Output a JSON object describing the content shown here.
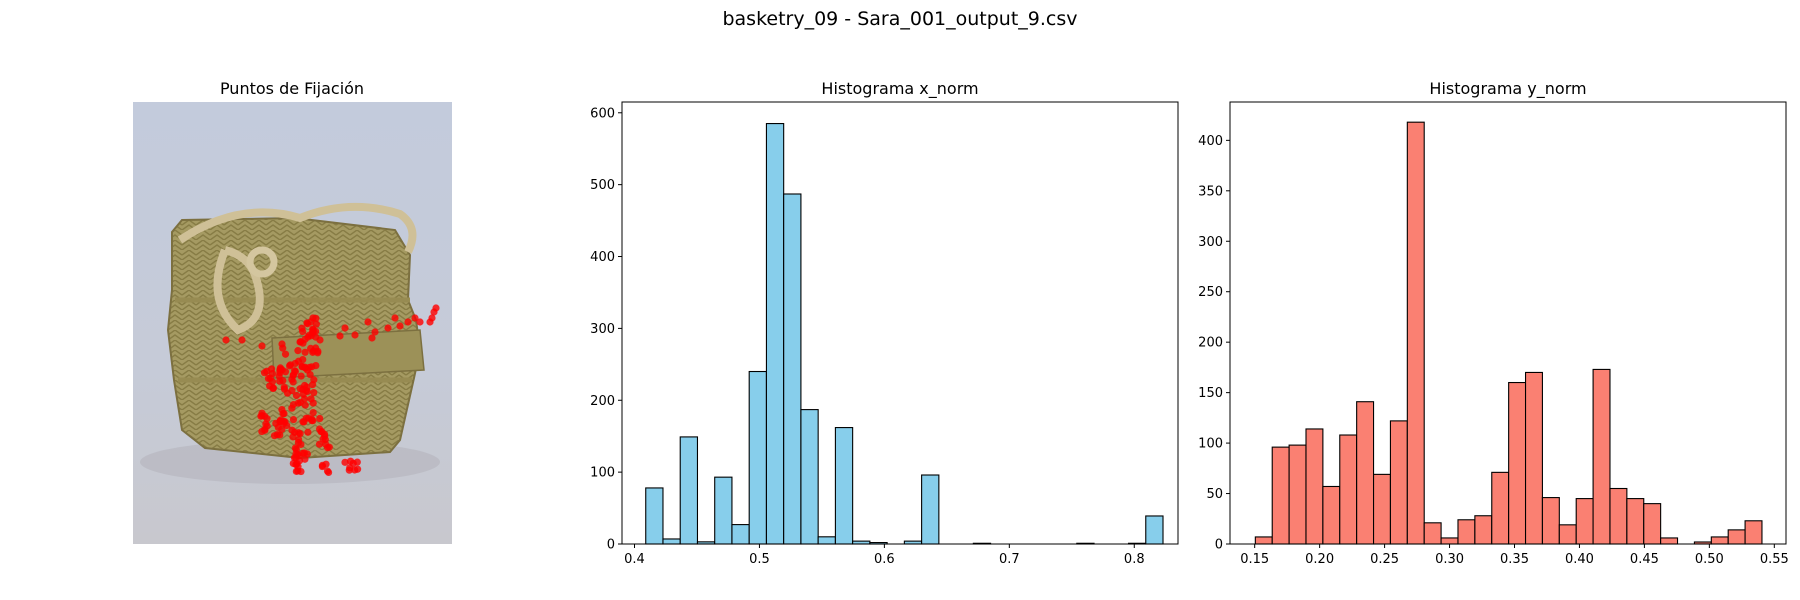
{
  "figure": {
    "title": "basketry_09 - Sara_001_output_9.csv"
  },
  "image_panel": {
    "title": "Puntos de Fijación"
  },
  "colors": {
    "x_hist": "#87ceeb",
    "y_hist": "#fa8072",
    "edge": "#000000",
    "fixation": "#ff0000"
  },
  "chart_data": [
    {
      "type": "bar",
      "title": "Histograma x_norm",
      "xlabel": "",
      "ylabel": "",
      "xlim": [
        0.39,
        0.835
      ],
      "ylim": [
        0,
        615
      ],
      "xticks": [
        0.4,
        0.5,
        0.6,
        0.7,
        0.8
      ],
      "xtick_labels": [
        "0.4",
        "0.5",
        "0.6",
        "0.7",
        "0.8"
      ],
      "yticks": [
        0,
        100,
        200,
        300,
        400,
        500,
        600
      ],
      "ytick_labels": [
        "0",
        "100",
        "200",
        "300",
        "400",
        "500",
        "600"
      ],
      "bin_edges": [
        0.409,
        0.4228,
        0.4366,
        0.4504,
        0.4642,
        0.478,
        0.4918,
        0.5056,
        0.5194,
        0.5332,
        0.547,
        0.5608,
        0.5746,
        0.5884,
        0.6022,
        0.616,
        0.6298,
        0.6436,
        0.6574,
        0.6712,
        0.685,
        0.6988,
        0.7126,
        0.7264,
        0.7402,
        0.754,
        0.7678,
        0.7816,
        0.7954,
        0.8092,
        0.823
      ],
      "counts": [
        78,
        7,
        149,
        3,
        93,
        27,
        240,
        585,
        487,
        187,
        10,
        162,
        4,
        2,
        0,
        4,
        96,
        0,
        0,
        1,
        0,
        0,
        0,
        0,
        0,
        1,
        0,
        0,
        1,
        39
      ],
      "grid": false
    },
    {
      "type": "bar",
      "title": "Histograma y_norm",
      "xlabel": "",
      "ylabel": "",
      "xlim": [
        0.131,
        0.559
      ],
      "ylim": [
        0,
        438
      ],
      "xticks": [
        0.15,
        0.2,
        0.25,
        0.3,
        0.35,
        0.4,
        0.45,
        0.5,
        0.55
      ],
      "xtick_labels": [
        "0.15",
        "0.20",
        "0.25",
        "0.30",
        "0.35",
        "0.40",
        "0.45",
        "0.50",
        "0.55"
      ],
      "yticks": [
        0,
        50,
        100,
        150,
        200,
        250,
        300,
        350,
        400
      ],
      "ytick_labels": [
        "0",
        "50",
        "100",
        "150",
        "200",
        "250",
        "300",
        "350",
        "400"
      ],
      "bin_edges": [
        0.1505,
        0.1635,
        0.1765,
        0.1895,
        0.2025,
        0.2155,
        0.2285,
        0.2415,
        0.2545,
        0.2675,
        0.2805,
        0.2935,
        0.3065,
        0.3195,
        0.3325,
        0.3455,
        0.3585,
        0.3715,
        0.3845,
        0.3975,
        0.4105,
        0.4235,
        0.4365,
        0.4495,
        0.4625,
        0.4755,
        0.4885,
        0.5015,
        0.5145,
        0.5275,
        0.5405
      ],
      "counts": [
        7,
        96,
        98,
        114,
        57,
        108,
        141,
        69,
        122,
        418,
        21,
        6,
        24,
        28,
        71,
        160,
        170,
        46,
        19,
        45,
        173,
        55,
        45,
        40,
        6,
        0,
        2,
        7,
        14,
        23
      ],
      "grid": false
    }
  ]
}
